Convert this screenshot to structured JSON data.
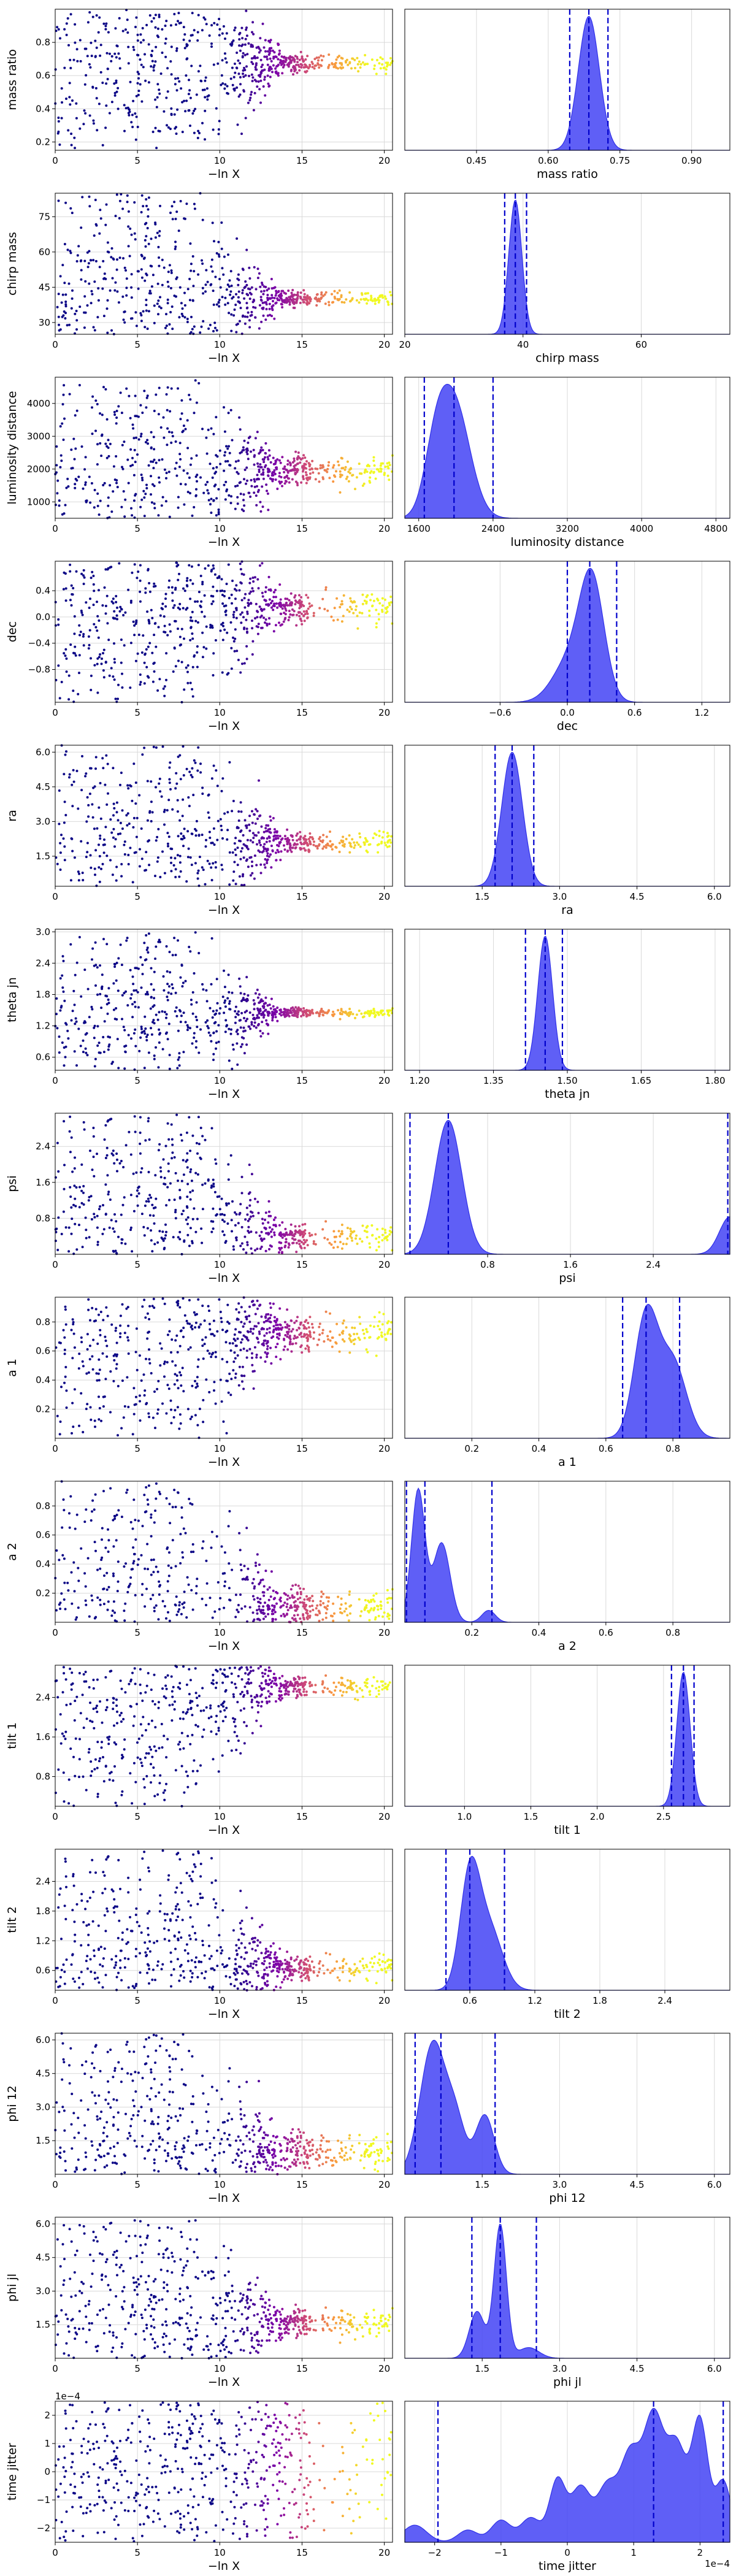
{
  "colors": {
    "kde_fill": "#4343f5",
    "kde_line": "#3030e8",
    "interval_line": "#0000cc",
    "trace_low": "#0d0887",
    "trace_mid": "#cc4778",
    "trace_high": "#f0f921"
  },
  "chart_data": [
    {
      "type": "scatter",
      "name": "mass ratio",
      "trace": {
        "xlabel": "−ln X",
        "xlim": [
          0,
          20.5
        ],
        "ylim": [
          0.15,
          1.0
        ],
        "xticks": [
          0,
          5,
          10,
          15,
          20
        ],
        "yticks": [
          0.2,
          0.4,
          0.6,
          0.8
        ],
        "ytick_labels": [
          "0.2",
          "0.4",
          "0.6",
          "0.8"
        ],
        "center": 0.67,
        "spread": 0.25,
        "converged_spread": 0.03
      },
      "posterior": {
        "type": "area",
        "xlabel": "mass ratio",
        "xlim": [
          0.3,
          0.98
        ],
        "xticks": [
          0.45,
          0.6,
          0.75,
          0.9
        ],
        "xtick_labels": [
          "0.45",
          "0.60",
          "0.75",
          "0.90"
        ],
        "peaks": [
          [
            0.685,
            0.022,
            1.0
          ]
        ],
        "intervals": [
          0.645,
          0.685,
          0.725
        ]
      }
    },
    {
      "type": "scatter",
      "name": "chirp mass",
      "trace": {
        "xlabel": "−ln X",
        "xlim": [
          0,
          20.5
        ],
        "ylim": [
          25,
          85
        ],
        "xticks": [
          0,
          5,
          10,
          15,
          20
        ],
        "yticks": [
          30,
          45,
          60,
          75
        ],
        "ytick_labels": [
          "30",
          "45",
          "60",
          "75"
        ],
        "center": 40,
        "spread": 18,
        "converged_spread": 1.5
      },
      "posterior": {
        "type": "area",
        "xlabel": "chirp mass",
        "xlim": [
          20,
          75
        ],
        "xticks": [
          20,
          40,
          60
        ],
        "xtick_labels": [
          "20",
          "40",
          "60"
        ],
        "peaks": [
          [
            38.7,
            1.1,
            1.0
          ]
        ],
        "intervals": [
          36.9,
          38.7,
          40.6
        ]
      }
    },
    {
      "type": "scatter",
      "name": "luminosity distance",
      "trace": {
        "xlabel": "−ln X",
        "xlim": [
          0,
          20.5
        ],
        "ylim": [
          500,
          4800
        ],
        "xticks": [
          0,
          5,
          10,
          15,
          20
        ],
        "yticks": [
          1000,
          2000,
          3000,
          4000
        ],
        "ytick_labels": [
          "1000",
          "2000",
          "3000",
          "4000"
        ],
        "center": 1950,
        "spread": 1400,
        "converged_spread": 220
      },
      "posterior": {
        "type": "area",
        "xlabel": "luminosity distance",
        "xlim": [
          1450,
          4950
        ],
        "xticks": [
          1600,
          2400,
          3200,
          4000,
          4800
        ],
        "xtick_labels": [
          "1600",
          "2400",
          "3200",
          "4000",
          "4800"
        ],
        "peaks": [
          [
            1980,
            170,
            1.0
          ],
          [
            1780,
            120,
            0.45
          ]
        ],
        "intervals": [
          1660,
          1980,
          2400
        ]
      }
    },
    {
      "type": "scatter",
      "name": "dec",
      "trace": {
        "xlabel": "−ln X",
        "xlim": [
          0,
          20.5
        ],
        "ylim": [
          -1.3,
          0.85
        ],
        "xticks": [
          0,
          5,
          10,
          15,
          20
        ],
        "yticks": [
          -0.8,
          -0.4,
          0.0,
          0.4
        ],
        "ytick_labels": [
          "−0.8",
          "−0.4",
          "0.0",
          "0.4"
        ],
        "center": 0.15,
        "spread": 0.7,
        "converged_spread": 0.12
      },
      "posterior": {
        "type": "area",
        "xlabel": "dec",
        "xlim": [
          -1.45,
          1.45
        ],
        "xticks": [
          -0.6,
          0.0,
          0.6,
          1.2
        ],
        "xtick_labels": [
          "−0.6",
          "0.0",
          "0.6",
          "1.2"
        ],
        "peaks": [
          [
            0.22,
            0.11,
            1.0
          ],
          [
            0.02,
            0.15,
            0.35
          ]
        ],
        "intervals": [
          0.0,
          0.2,
          0.44
        ]
      }
    },
    {
      "type": "scatter",
      "name": "ra",
      "trace": {
        "xlabel": "−ln X",
        "xlim": [
          0,
          20.5
        ],
        "ylim": [
          0.2,
          6.3
        ],
        "xticks": [
          0,
          5,
          10,
          15,
          20
        ],
        "yticks": [
          1.5,
          3.0,
          4.5,
          6.0
        ],
        "ytick_labels": [
          "1.5",
          "3.0",
          "4.5",
          "6.0"
        ],
        "center": 2.1,
        "spread": 2.4,
        "converged_spread": 0.2
      },
      "posterior": {
        "type": "area",
        "xlabel": "ra",
        "xlim": [
          0.0,
          6.3
        ],
        "xticks": [
          1.5,
          3.0,
          4.5,
          6.0
        ],
        "xtick_labels": [
          "1.5",
          "3.0",
          "4.5",
          "6.0"
        ],
        "peaks": [
          [
            2.08,
            0.2,
            1.0
          ]
        ],
        "intervals": [
          1.75,
          2.08,
          2.5
        ]
      }
    },
    {
      "type": "scatter",
      "name": "theta jn",
      "trace": {
        "xlabel": "−ln X",
        "xlim": [
          0,
          20.5
        ],
        "ylim": [
          0.35,
          3.05
        ],
        "xticks": [
          0,
          5,
          10,
          15,
          20
        ],
        "yticks": [
          0.6,
          1.2,
          1.8,
          2.4,
          3.0
        ],
        "ytick_labels": [
          "0.6",
          "1.2",
          "1.8",
          "2.4",
          "3.0"
        ],
        "center": 1.45,
        "spread": 0.6,
        "converged_spread": 0.04
      },
      "posterior": {
        "type": "area",
        "xlabel": "theta jn",
        "xlim": [
          1.17,
          1.83
        ],
        "xticks": [
          1.2,
          1.35,
          1.5,
          1.65,
          1.8
        ],
        "xtick_labels": [
          "1.20",
          "1.35",
          "1.50",
          "1.65",
          "1.80"
        ],
        "peaks": [
          [
            1.455,
            0.015,
            1.0
          ]
        ],
        "intervals": [
          1.415,
          1.455,
          1.49
        ]
      }
    },
    {
      "type": "scatter",
      "name": "psi",
      "trace": {
        "xlabel": "−ln X",
        "xlim": [
          0,
          20.5
        ],
        "ylim": [
          0.0,
          3.14
        ],
        "xticks": [
          0,
          5,
          10,
          15,
          20
        ],
        "yticks": [
          0.8,
          1.6,
          2.4
        ],
        "ytick_labels": [
          "0.8",
          "1.6",
          "2.4"
        ],
        "center": 0.4,
        "spread": 1.4,
        "converged_spread": 0.15
      },
      "posterior": {
        "type": "area",
        "xlabel": "psi",
        "xlim": [
          0.0,
          3.14
        ],
        "xticks": [
          0.8,
          1.6,
          2.4
        ],
        "xtick_labels": [
          "0.8",
          "1.6",
          "2.4"
        ],
        "peaks": [
          [
            0.42,
            0.13,
            1.0
          ],
          [
            3.14,
            0.1,
            0.28
          ]
        ],
        "intervals": [
          0.05,
          0.42,
          3.12
        ]
      }
    },
    {
      "type": "scatter",
      "name": "a 1",
      "trace": {
        "xlabel": "−ln X",
        "xlim": [
          0,
          20.5
        ],
        "ylim": [
          0.0,
          0.97
        ],
        "xticks": [
          0,
          5,
          10,
          15,
          20
        ],
        "yticks": [
          0.2,
          0.4,
          0.6,
          0.8
        ],
        "ytick_labels": [
          "0.2",
          "0.4",
          "0.6",
          "0.8"
        ],
        "center": 0.72,
        "spread": 0.35,
        "converged_spread": 0.06
      },
      "posterior": {
        "type": "area",
        "xlabel": "a 1",
        "xlim": [
          0.0,
          0.97
        ],
        "xticks": [
          0.2,
          0.4,
          0.6,
          0.8
        ],
        "xtick_labels": [
          "0.2",
          "0.4",
          "0.6",
          "0.8"
        ],
        "peaks": [
          [
            0.72,
            0.035,
            1.0
          ],
          [
            0.8,
            0.04,
            0.62
          ]
        ],
        "intervals": [
          0.65,
          0.72,
          0.82
        ]
      }
    },
    {
      "type": "scatter",
      "name": "a 2",
      "trace": {
        "xlabel": "−ln X",
        "xlim": [
          0,
          20.5
        ],
        "ylim": [
          0.0,
          0.97
        ],
        "xticks": [
          0,
          5,
          10,
          15,
          20
        ],
        "yticks": [
          0.2,
          0.4,
          0.6,
          0.8
        ],
        "ytick_labels": [
          "0.2",
          "0.4",
          "0.6",
          "0.8"
        ],
        "center": 0.1,
        "spread": 0.45,
        "converged_spread": 0.06
      },
      "posterior": {
        "type": "area",
        "xlabel": "a 2",
        "xlim": [
          0.0,
          0.97
        ],
        "xticks": [
          0.2,
          0.4,
          0.6,
          0.8
        ],
        "xtick_labels": [
          "0.2",
          "0.4",
          "0.6",
          "0.8"
        ],
        "peaks": [
          [
            0.04,
            0.02,
            1.0
          ],
          [
            0.11,
            0.025,
            0.6
          ],
          [
            0.25,
            0.02,
            0.09
          ]
        ],
        "intervals": [
          0.005,
          0.06,
          0.26
        ]
      }
    },
    {
      "type": "scatter",
      "name": "tilt 1",
      "trace": {
        "xlabel": "−ln X",
        "xlim": [
          0,
          20.5
        ],
        "ylim": [
          0.2,
          3.05
        ],
        "xticks": [
          0,
          5,
          10,
          15,
          20
        ],
        "yticks": [
          0.8,
          1.6,
          2.4
        ],
        "ytick_labels": [
          "0.8",
          "1.6",
          "2.4"
        ],
        "center": 2.62,
        "spread": 1.0,
        "converged_spread": 0.1
      },
      "posterior": {
        "type": "area",
        "xlabel": "tilt 1",
        "xlim": [
          0.55,
          3.0
        ],
        "xticks": [
          1.0,
          1.5,
          2.0,
          2.5
        ],
        "xtick_labels": [
          "1.0",
          "1.5",
          "2.0",
          "2.5"
        ],
        "peaks": [
          [
            2.65,
            0.05,
            1.0
          ]
        ],
        "intervals": [
          2.56,
          2.65,
          2.73
        ]
      }
    },
    {
      "type": "scatter",
      "name": "tilt 2",
      "trace": {
        "xlabel": "−ln X",
        "xlim": [
          0,
          20.5
        ],
        "ylim": [
          0.2,
          3.05
        ],
        "xticks": [
          0,
          5,
          10,
          15,
          20
        ],
        "yticks": [
          0.6,
          1.2,
          1.8,
          2.4
        ],
        "ytick_labels": [
          "0.6",
          "1.2",
          "1.8",
          "2.4"
        ],
        "center": 0.65,
        "spread": 1.0,
        "converged_spread": 0.12
      },
      "posterior": {
        "type": "area",
        "xlabel": "tilt 2",
        "xlim": [
          0.0,
          3.0
        ],
        "xticks": [
          0.6,
          1.2,
          1.8,
          2.4
        ],
        "xtick_labels": [
          "0.6",
          "1.2",
          "1.8",
          "2.4"
        ],
        "peaks": [
          [
            0.6,
            0.09,
            1.0
          ],
          [
            0.78,
            0.12,
            0.55
          ]
        ],
        "intervals": [
          0.38,
          0.6,
          0.92
        ]
      }
    },
    {
      "type": "scatter",
      "name": "phi 12",
      "trace": {
        "xlabel": "−ln X",
        "xlim": [
          0,
          20.5
        ],
        "ylim": [
          0.0,
          6.3
        ],
        "xticks": [
          0,
          5,
          10,
          15,
          20
        ],
        "yticks": [
          1.5,
          3.0,
          4.5,
          6.0
        ],
        "ytick_labels": [
          "1.5",
          "3.0",
          "4.5",
          "6.0"
        ],
        "center": 1.0,
        "spread": 2.5,
        "converged_spread": 0.4
      },
      "posterior": {
        "type": "area",
        "xlabel": "phi 12",
        "xlim": [
          0.0,
          6.3
        ],
        "xticks": [
          1.5,
          3.0,
          4.5,
          6.0
        ],
        "xtick_labels": [
          "1.5",
          "3.0",
          "4.5",
          "6.0"
        ],
        "peaks": [
          [
            0.55,
            0.25,
            1.0
          ],
          [
            1.0,
            0.18,
            0.35
          ],
          [
            1.55,
            0.18,
            0.45
          ]
        ],
        "intervals": [
          0.2,
          0.7,
          1.75
        ]
      }
    },
    {
      "type": "scatter",
      "name": "phi jl",
      "trace": {
        "xlabel": "−ln X",
        "xlim": [
          0,
          20.5
        ],
        "ylim": [
          0.0,
          6.3
        ],
        "xticks": [
          0,
          5,
          10,
          15,
          20
        ],
        "yticks": [
          1.5,
          3.0,
          4.5,
          6.0
        ],
        "ytick_labels": [
          "1.5",
          "3.0",
          "4.5",
          "6.0"
        ],
        "center": 1.6,
        "spread": 2.5,
        "converged_spread": 0.3
      },
      "posterior": {
        "type": "area",
        "xlabel": "phi jl",
        "xlim": [
          0.0,
          6.3
        ],
        "xticks": [
          1.5,
          3.0,
          4.5,
          6.0
        ],
        "xtick_labels": [
          "1.5",
          "3.0",
          "4.5",
          "6.0"
        ],
        "peaks": [
          [
            1.85,
            0.12,
            1.0
          ],
          [
            1.4,
            0.15,
            0.35
          ],
          [
            2.4,
            0.2,
            0.08
          ]
        ],
        "intervals": [
          1.3,
          1.85,
          2.55
        ]
      }
    },
    {
      "type": "scatter",
      "name": "time jitter",
      "trace": {
        "xlabel": "−ln X",
        "xlim": [
          0,
          20.5
        ],
        "ylim": [
          -2.5,
          2.5
        ],
        "xticks": [
          0,
          5,
          10,
          15,
          20
        ],
        "yticks": [
          -2,
          -1,
          0,
          1,
          2
        ],
        "ytick_labels": [
          "−2",
          "−1",
          "0",
          "1",
          "2"
        ],
        "center": 0.0,
        "spread": 2.3,
        "converged_spread": 2.3,
        "offset_label": "1e−4"
      },
      "posterior": {
        "type": "area",
        "xlabel": "time jitter",
        "xlim": [
          -2.45,
          2.45
        ],
        "xticks": [
          -2,
          -1,
          0,
          1,
          2
        ],
        "xtick_labels": [
          "−2",
          "−1",
          "0",
          "1",
          "2"
        ],
        "peaks": [
          [
            -2.3,
            0.18,
            0.14
          ],
          [
            -1.5,
            0.15,
            0.1
          ],
          [
            -1.0,
            0.15,
            0.18
          ],
          [
            -0.55,
            0.15,
            0.2
          ],
          [
            -0.15,
            0.12,
            0.5
          ],
          [
            0.2,
            0.15,
            0.45
          ],
          [
            0.6,
            0.15,
            0.45
          ],
          [
            0.95,
            0.15,
            0.7
          ],
          [
            1.3,
            0.15,
            1.0
          ],
          [
            1.65,
            0.15,
            0.78
          ],
          [
            2.0,
            0.12,
            0.98
          ],
          [
            2.35,
            0.12,
            0.5
          ]
        ],
        "intervals": [
          -1.95,
          1.3,
          2.35
        ],
        "offset_label": "1e−4"
      }
    }
  ]
}
